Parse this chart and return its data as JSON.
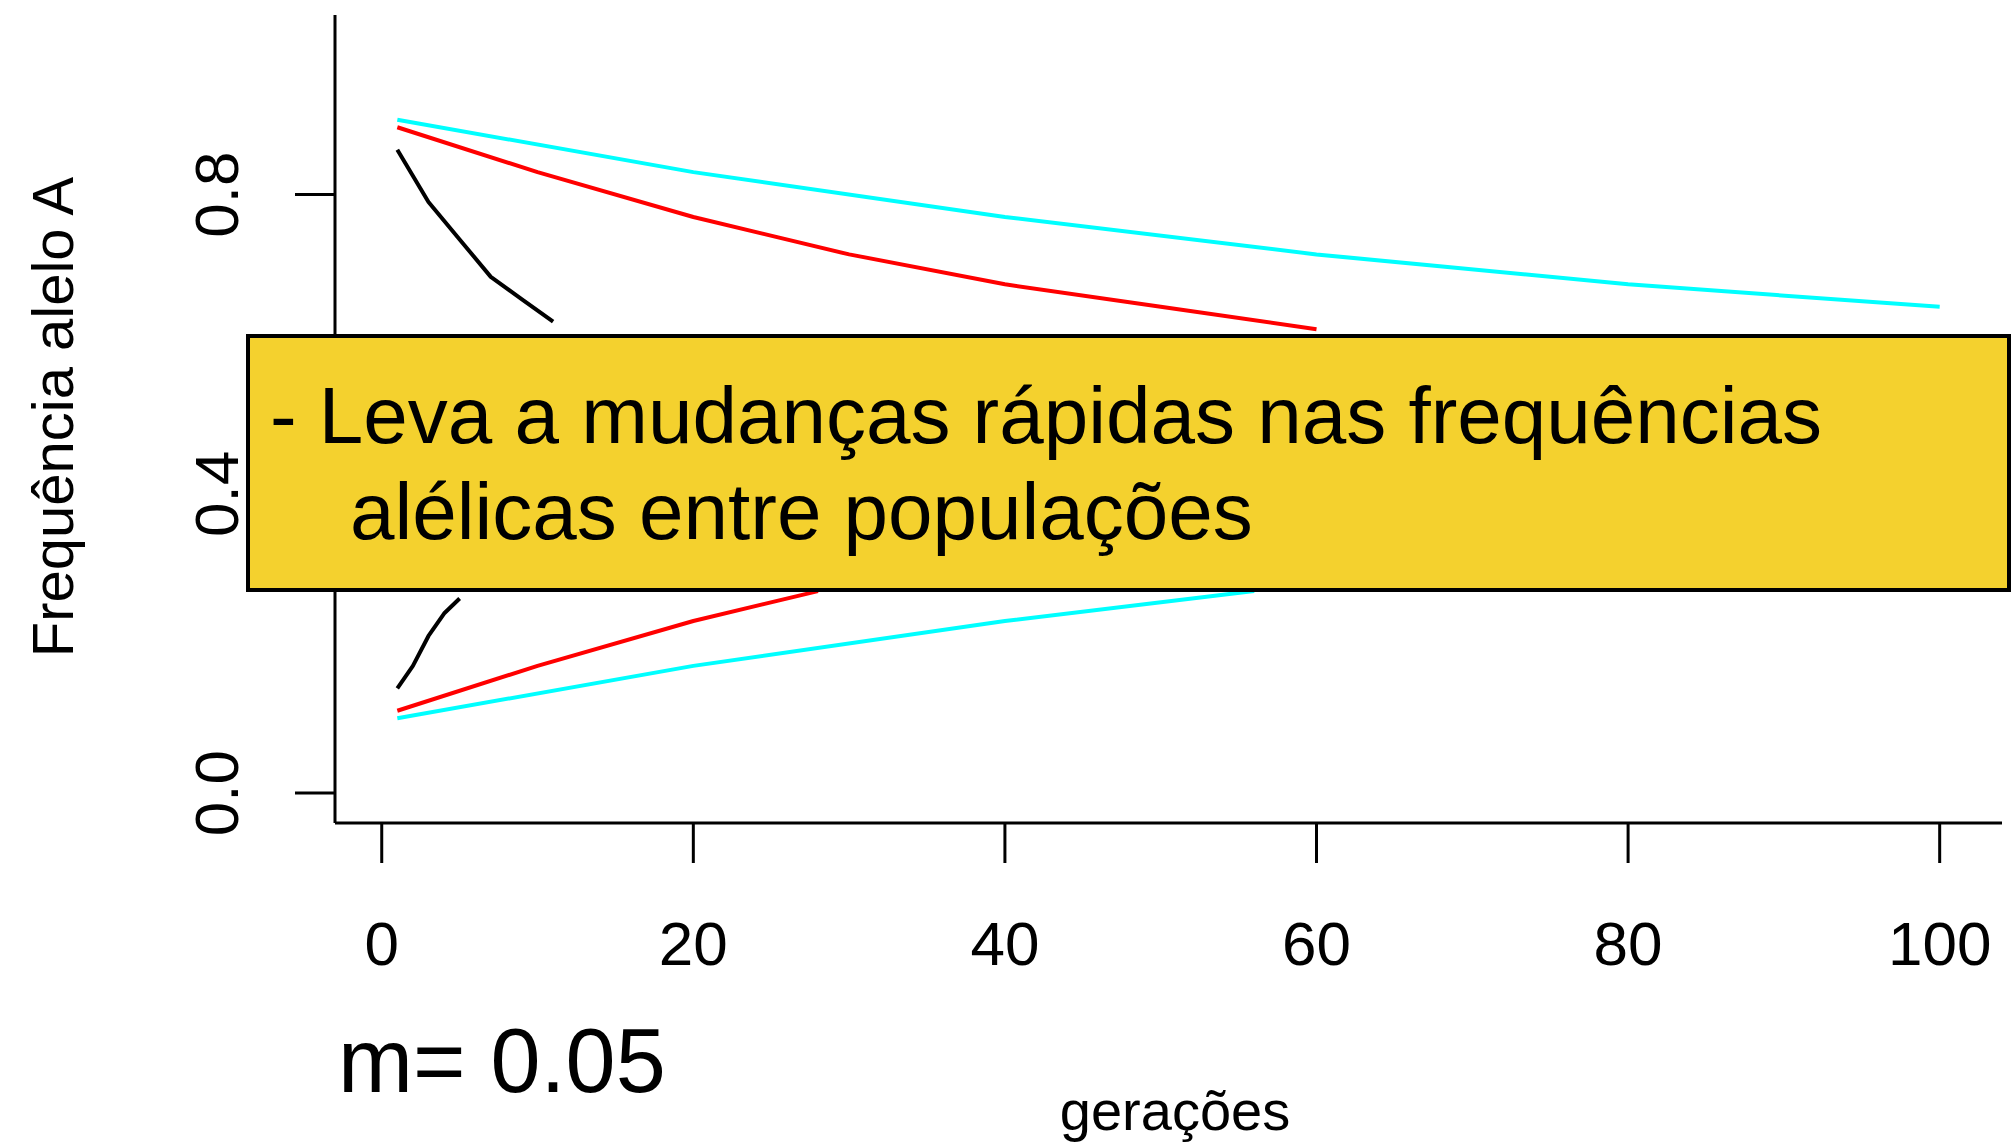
{
  "chart_data": {
    "type": "line",
    "xlabel": "gerações",
    "ylabel": "Frequência alelo A",
    "xlim": [
      -3,
      104
    ],
    "ylim": [
      -0.04,
      1.04
    ],
    "xticks": [
      0,
      20,
      40,
      60,
      80,
      100
    ],
    "yticks": [
      {
        "value": 0,
        "label": "0.0"
      },
      {
        "value": 0.4,
        "label": "0.4"
      },
      {
        "value": 0.8,
        "label": "0.8"
      }
    ],
    "marker": "none",
    "line_style": "solid",
    "series": [
      {
        "color": "#000000",
        "x": [
          1,
          3,
          5,
          7,
          9,
          11
        ],
        "values": [
          0.86,
          0.79,
          0.74,
          0.69,
          0.66,
          0.63
        ]
      },
      {
        "color": "#000000",
        "x": [
          1,
          2,
          3,
          4,
          5
        ],
        "values": [
          0.14,
          0.17,
          0.21,
          0.24,
          0.26
        ]
      },
      {
        "color": "#ff0000",
        "x": [
          1,
          10,
          20,
          30,
          40,
          50,
          60
        ],
        "values": [
          0.89,
          0.83,
          0.77,
          0.72,
          0.68,
          0.65,
          0.62
        ]
      },
      {
        "color": "#ff0000",
        "x": [
          1,
          10,
          20,
          28
        ],
        "values": [
          0.11,
          0.17,
          0.23,
          0.27
        ]
      },
      {
        "color": "#00ffff",
        "x": [
          1,
          20,
          40,
          60,
          80,
          100
        ],
        "values": [
          0.9,
          0.83,
          0.77,
          0.72,
          0.68,
          0.65
        ]
      },
      {
        "color": "#00ffff",
        "x": [
          1,
          20,
          40,
          56
        ],
        "values": [
          0.1,
          0.17,
          0.23,
          0.27
        ]
      }
    ],
    "annotations": [
      "- Leva a mudanças rápidas nas frequências alélicas entre populações",
      "m= 0.05"
    ]
  }
}
